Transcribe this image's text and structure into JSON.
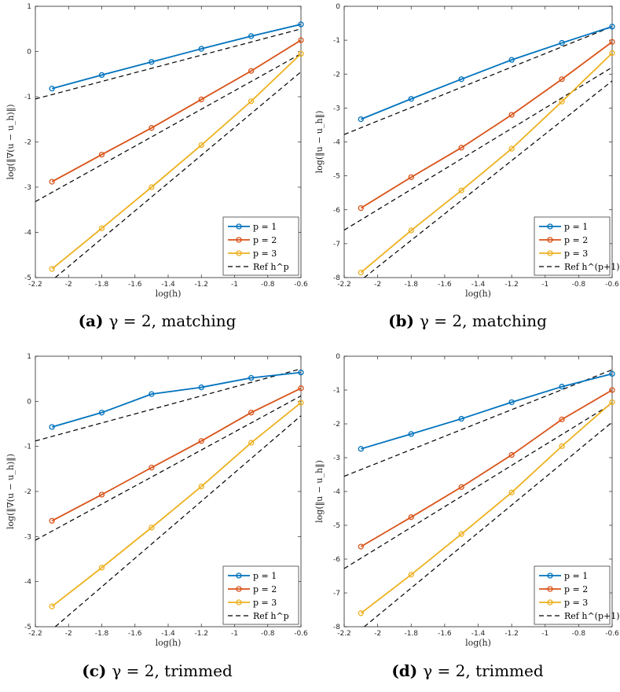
{
  "series_styles": [
    {
      "name": "p = 1",
      "color": "#0072BD"
    },
    {
      "name": "p = 2",
      "color": "#D95319"
    },
    {
      "name": "p = 3",
      "color": "#EDB120"
    }
  ],
  "ref_color": "#000000",
  "chart_data": [
    {
      "type": "line",
      "caption_letter": "(a)",
      "caption_text": "γ = 2, matching",
      "ylabel": "log(‖∇(u − u_h)‖)",
      "xlabel": "log(h)",
      "xlim": [
        -2.2,
        -0.6
      ],
      "ylim": [
        -5,
        1
      ],
      "xticks": [
        -2.2,
        -2,
        -1.8,
        -1.6,
        -1.4,
        -1.2,
        -1,
        -0.8,
        -0.6
      ],
      "yticks": [
        -5,
        -4,
        -3,
        -2,
        -1,
        0,
        1
      ],
      "legend_position": "bottom-right",
      "x": [
        -2.1,
        -1.8,
        -1.5,
        -1.2,
        -0.9,
        -0.6
      ],
      "series": [
        {
          "name": "p = 1",
          "values": [
            -0.82,
            -0.52,
            -0.23,
            0.06,
            0.34,
            0.6
          ]
        },
        {
          "name": "p = 2",
          "values": [
            -2.88,
            -2.28,
            -1.69,
            -1.06,
            -0.43,
            0.25
          ]
        },
        {
          "name": "p = 3",
          "values": [
            -4.81,
            -3.91,
            -3.0,
            -2.07,
            -1.1,
            -0.05
          ]
        }
      ],
      "reference": {
        "name": "Ref h^p",
        "lines": [
          {
            "x": [
              -2.2,
              -0.6
            ],
            "y": [
              -1.05,
              0.5
            ]
          },
          {
            "x": [
              -2.2,
              -0.6
            ],
            "y": [
              -3.32,
              -0.05
            ]
          },
          {
            "x": [
              -2.08,
              -0.6
            ],
            "y": [
              -5.0,
              -0.45
            ]
          }
        ]
      }
    },
    {
      "type": "line",
      "caption_letter": "(b)",
      "caption_text": "γ = 2, matching",
      "ylabel": "log(‖u − u_h‖)",
      "xlabel": "log(h)",
      "xlim": [
        -2.2,
        -0.6
      ],
      "ylim": [
        -8,
        0
      ],
      "xticks": [
        -2.2,
        -2,
        -1.8,
        -1.6,
        -1.4,
        -1.2,
        -1,
        -0.8,
        -0.6
      ],
      "yticks": [
        -8,
        -7,
        -6,
        -5,
        -4,
        -3,
        -2,
        -1,
        0
      ],
      "legend_position": "bottom-right",
      "x": [
        -2.1,
        -1.8,
        -1.5,
        -1.2,
        -0.9,
        -0.6
      ],
      "series": [
        {
          "name": "p = 1",
          "values": [
            -3.33,
            -2.73,
            -2.15,
            -1.58,
            -1.08,
            -0.6
          ]
        },
        {
          "name": "p = 2",
          "values": [
            -5.95,
            -5.04,
            -4.17,
            -3.2,
            -2.15,
            -1.05
          ]
        },
        {
          "name": "p = 3",
          "values": [
            -7.85,
            -6.61,
            -5.43,
            -4.2,
            -2.81,
            -1.38
          ]
        }
      ],
      "reference": {
        "name": "Ref h^(p+1)",
        "lines": [
          {
            "x": [
              -2.2,
              -0.6
            ],
            "y": [
              -3.78,
              -0.6
            ]
          },
          {
            "x": [
              -2.2,
              -0.6
            ],
            "y": [
              -6.6,
              -1.8
            ]
          },
          {
            "x": [
              -2.08,
              -0.6
            ],
            "y": [
              -8.0,
              -2.2
            ]
          }
        ]
      }
    },
    {
      "type": "line",
      "caption_letter": "(c)",
      "caption_text": "γ = 2, trimmed",
      "ylabel": "log(‖∇(u − u_h)‖)",
      "xlabel": "log(h)",
      "xlim": [
        -2.2,
        -0.6
      ],
      "ylim": [
        -5,
        1
      ],
      "xticks": [
        -2.2,
        -2,
        -1.8,
        -1.6,
        -1.4,
        -1.2,
        -1,
        -0.8,
        -0.6
      ],
      "yticks": [
        -5,
        -4,
        -3,
        -2,
        -1,
        0,
        1
      ],
      "legend_position": "bottom-right",
      "x": [
        -2.1,
        -1.8,
        -1.5,
        -1.2,
        -0.9,
        -0.6
      ],
      "series": [
        {
          "name": "p = 1",
          "values": [
            -0.57,
            -0.25,
            0.16,
            0.31,
            0.52,
            0.64
          ]
        },
        {
          "name": "p = 2",
          "values": [
            -2.65,
            -2.07,
            -1.47,
            -0.88,
            -0.25,
            0.29
          ]
        },
        {
          "name": "p = 3",
          "values": [
            -4.55,
            -3.69,
            -2.8,
            -1.89,
            -0.92,
            -0.03
          ]
        }
      ],
      "reference": {
        "name": "Ref h^p",
        "lines": [
          {
            "x": [
              -2.2,
              -0.6
            ],
            "y": [
              -0.88,
              0.72
            ]
          },
          {
            "x": [
              -2.2,
              -0.6
            ],
            "y": [
              -3.08,
              0.12
            ]
          },
          {
            "x": [
              -2.08,
              -0.6
            ],
            "y": [
              -5.0,
              -0.32
            ]
          }
        ]
      }
    },
    {
      "type": "line",
      "caption_letter": "(d)",
      "caption_text": "γ = 2, trimmed",
      "ylabel": "log(‖u − u_h‖)",
      "xlabel": "log(h)",
      "xlim": [
        -2.2,
        -0.6
      ],
      "ylim": [
        -8,
        0
      ],
      "xticks": [
        -2.2,
        -2,
        -1.8,
        -1.6,
        -1.4,
        -1.2,
        -1,
        -0.8,
        -0.6
      ],
      "yticks": [
        -8,
        -7,
        -6,
        -5,
        -4,
        -3,
        -2,
        -1,
        0
      ],
      "legend_position": "bottom-right",
      "x": [
        -2.1,
        -1.8,
        -1.5,
        -1.2,
        -0.9,
        -0.6
      ],
      "series": [
        {
          "name": "p = 1",
          "values": [
            -2.74,
            -2.3,
            -1.85,
            -1.36,
            -0.9,
            -0.52
          ]
        },
        {
          "name": "p = 2",
          "values": [
            -5.63,
            -4.76,
            -3.87,
            -2.92,
            -1.87,
            -1.0
          ]
        },
        {
          "name": "p = 3",
          "values": [
            -7.6,
            -6.46,
            -5.26,
            -4.03,
            -2.66,
            -1.36
          ]
        }
      ],
      "reference": {
        "name": "Ref h^(p+1)",
        "lines": [
          {
            "x": [
              -2.2,
              -0.6
            ],
            "y": [
              -3.55,
              -0.4
            ]
          },
          {
            "x": [
              -2.2,
              -0.6
            ],
            "y": [
              -6.28,
              -1.4
            ]
          },
          {
            "x": [
              -2.08,
              -0.6
            ],
            "y": [
              -8.0,
              -1.95
            ]
          }
        ]
      }
    }
  ]
}
